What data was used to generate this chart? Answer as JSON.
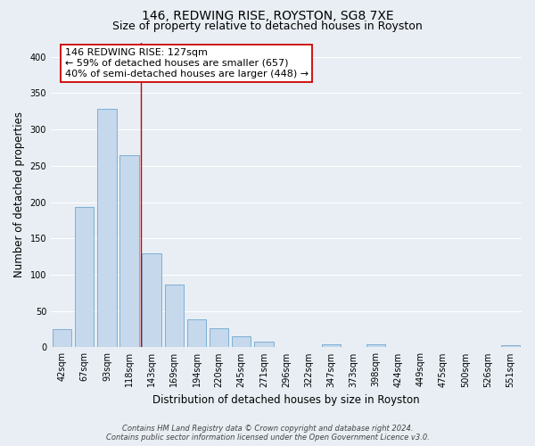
{
  "title": "146, REDWING RISE, ROYSTON, SG8 7XE",
  "subtitle": "Size of property relative to detached houses in Royston",
  "xlabel": "Distribution of detached houses by size in Royston",
  "ylabel": "Number of detached properties",
  "bar_labels": [
    "42sqm",
    "67sqm",
    "93sqm",
    "118sqm",
    "143sqm",
    "169sqm",
    "194sqm",
    "220sqm",
    "245sqm",
    "271sqm",
    "296sqm",
    "322sqm",
    "347sqm",
    "373sqm",
    "398sqm",
    "424sqm",
    "449sqm",
    "475sqm",
    "500sqm",
    "526sqm",
    "551sqm"
  ],
  "bar_values": [
    25,
    193,
    328,
    265,
    130,
    87,
    38,
    26,
    15,
    8,
    0,
    0,
    4,
    0,
    4,
    0,
    0,
    0,
    0,
    0,
    3
  ],
  "bar_color": "#c5d8ec",
  "bar_edge_color": "#6fa8d0",
  "vline_x": 3.5,
  "vline_color": "#cc0000",
  "annotation_title": "146 REDWING RISE: 127sqm",
  "annotation_line1": "← 59% of detached houses are smaller (657)",
  "annotation_line2": "40% of semi-detached houses are larger (448) →",
  "annotation_box_facecolor": "#ffffff",
  "annotation_box_edgecolor": "#cc0000",
  "ylim": [
    0,
    420
  ],
  "yticks": [
    0,
    50,
    100,
    150,
    200,
    250,
    300,
    350,
    400
  ],
  "footer_line1": "Contains HM Land Registry data © Crown copyright and database right 2024.",
  "footer_line2": "Contains public sector information licensed under the Open Government Licence v3.0.",
  "background_color": "#e8eef4",
  "grid_color": "#ffffff",
  "title_fontsize": 10,
  "subtitle_fontsize": 9,
  "axis_label_fontsize": 8.5,
  "tick_fontsize": 7,
  "annotation_fontsize": 8,
  "footer_fontsize": 6
}
